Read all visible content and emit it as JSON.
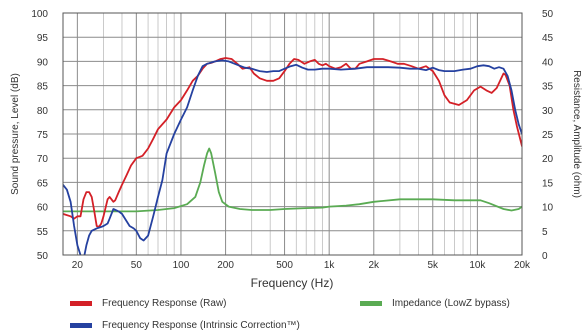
{
  "chart_data": {
    "type": "line",
    "title": "",
    "xlabel": "Frequency (Hz)",
    "ylabel_left": "Sound pressure, Level (dB)",
    "ylabel_right": "Resistance, Amplitude (ohm)",
    "x_scale": "log",
    "xlim": [
      16,
      20000
    ],
    "ylim_left": [
      50,
      100
    ],
    "ylim_right": [
      0,
      50
    ],
    "x_ticks": [
      {
        "value": 20,
        "label": "20"
      },
      {
        "value": 50,
        "label": "50"
      },
      {
        "value": 100,
        "label": "100"
      },
      {
        "value": 200,
        "label": "200"
      },
      {
        "value": 500,
        "label": "500"
      },
      {
        "value": 1000,
        "label": "1k"
      },
      {
        "value": 2000,
        "label": "2k"
      },
      {
        "value": 5000,
        "label": "5k"
      },
      {
        "value": 10000,
        "label": "10k"
      },
      {
        "value": 20000,
        "label": "20k"
      }
    ],
    "y_ticks_left": [
      "50",
      "55",
      "60",
      "65",
      "70",
      "75",
      "80",
      "85",
      "90",
      "95",
      "100"
    ],
    "y_ticks_right": [
      "0",
      "5",
      "10",
      "15",
      "20",
      "25",
      "30",
      "35",
      "40",
      "45",
      "50"
    ],
    "grid": true,
    "legend_position": "bottom",
    "series": [
      {
        "name": "Frequency Response (Raw)",
        "color": "#d42027",
        "axis": "left",
        "points": [
          [
            16,
            58.5
          ],
          [
            18,
            58
          ],
          [
            19,
            57.5
          ],
          [
            20,
            58
          ],
          [
            21,
            58
          ],
          [
            22,
            61.5
          ],
          [
            23,
            63
          ],
          [
            24,
            63
          ],
          [
            25,
            62
          ],
          [
            26,
            59
          ],
          [
            27,
            56
          ],
          [
            28,
            55.8
          ],
          [
            29,
            56.5
          ],
          [
            30,
            58
          ],
          [
            32,
            61.5
          ],
          [
            33,
            62
          ],
          [
            35,
            61
          ],
          [
            36,
            61.3
          ],
          [
            38,
            63
          ],
          [
            40,
            64.5
          ],
          [
            43,
            66.5
          ],
          [
            46,
            68.5
          ],
          [
            50,
            70
          ],
          [
            55,
            70.5
          ],
          [
            60,
            72
          ],
          [
            65,
            74
          ],
          [
            70,
            76
          ],
          [
            80,
            78
          ],
          [
            90,
            80.5
          ],
          [
            100,
            82
          ],
          [
            110,
            84
          ],
          [
            120,
            86
          ],
          [
            130,
            87
          ],
          [
            140,
            88.5
          ],
          [
            150,
            89.5
          ],
          [
            160,
            89.7
          ],
          [
            170,
            90
          ],
          [
            185,
            90.5
          ],
          [
            200,
            90.7
          ],
          [
            220,
            90.5
          ],
          [
            240,
            89.5
          ],
          [
            260,
            88.5
          ],
          [
            290,
            88.8
          ],
          [
            310,
            87.5
          ],
          [
            340,
            86.5
          ],
          [
            380,
            86
          ],
          [
            420,
            86
          ],
          [
            460,
            86.5
          ],
          [
            500,
            88
          ],
          [
            540,
            89.5
          ],
          [
            580,
            90.5
          ],
          [
            620,
            90.3
          ],
          [
            680,
            89.5
          ],
          [
            740,
            90
          ],
          [
            800,
            90.3
          ],
          [
            850,
            89.5
          ],
          [
            900,
            89.2
          ],
          [
            950,
            89.5
          ],
          [
            1000,
            89
          ],
          [
            1100,
            88.5
          ],
          [
            1200,
            88.8
          ],
          [
            1300,
            89.5
          ],
          [
            1400,
            88.5
          ],
          [
            1500,
            88.5
          ],
          [
            1600,
            89.5
          ],
          [
            1800,
            90
          ],
          [
            2000,
            90.5
          ],
          [
            2300,
            90.5
          ],
          [
            2600,
            90
          ],
          [
            2900,
            89.5
          ],
          [
            3200,
            89.5
          ],
          [
            3600,
            89
          ],
          [
            4000,
            88.5
          ],
          [
            4500,
            89
          ],
          [
            5000,
            88
          ],
          [
            5500,
            86
          ],
          [
            6000,
            83
          ],
          [
            6500,
            81.5
          ],
          [
            7500,
            81
          ],
          [
            8500,
            82
          ],
          [
            9500,
            84
          ],
          [
            10500,
            84.8
          ],
          [
            11500,
            84
          ],
          [
            12500,
            83.5
          ],
          [
            13500,
            84.5
          ],
          [
            15000,
            87.5
          ],
          [
            15500,
            87.2
          ],
          [
            16500,
            85
          ],
          [
            17500,
            80
          ],
          [
            18500,
            76.5
          ],
          [
            20000,
            72.5
          ]
        ]
      },
      {
        "name": "Frequency Response (Intrinsic Correction™)",
        "color": "#2541a0",
        "axis": "left",
        "points": [
          [
            16,
            64.5
          ],
          [
            17,
            63.5
          ],
          [
            18,
            61
          ],
          [
            19,
            56
          ],
          [
            20,
            52
          ],
          [
            21,
            50
          ],
          [
            22,
            49
          ],
          [
            23,
            52
          ],
          [
            24,
            54
          ],
          [
            25,
            55
          ],
          [
            27,
            55.5
          ],
          [
            29,
            55.8
          ],
          [
            30,
            56
          ],
          [
            32,
            56.5
          ],
          [
            33,
            57.5
          ],
          [
            35,
            59.5
          ],
          [
            38,
            59
          ],
          [
            40,
            58.5
          ],
          [
            45,
            56
          ],
          [
            48,
            55.5
          ],
          [
            50,
            55
          ],
          [
            53,
            53.5
          ],
          [
            56,
            53
          ],
          [
            60,
            54
          ],
          [
            65,
            58
          ],
          [
            70,
            62
          ],
          [
            75,
            65.5
          ],
          [
            80,
            71
          ],
          [
            90,
            75
          ],
          [
            100,
            78
          ],
          [
            110,
            80.5
          ],
          [
            120,
            84
          ],
          [
            130,
            87
          ],
          [
            140,
            89
          ],
          [
            150,
            89.5
          ],
          [
            170,
            90
          ],
          [
            190,
            90.2
          ],
          [
            210,
            90
          ],
          [
            240,
            89.3
          ],
          [
            270,
            88.7
          ],
          [
            300,
            88.5
          ],
          [
            340,
            88
          ],
          [
            380,
            87.8
          ],
          [
            420,
            88
          ],
          [
            460,
            88
          ],
          [
            500,
            88.5
          ],
          [
            550,
            89
          ],
          [
            600,
            89.3
          ],
          [
            660,
            88.7
          ],
          [
            720,
            88.3
          ],
          [
            800,
            88.3
          ],
          [
            900,
            88.5
          ],
          [
            1000,
            88.5
          ],
          [
            1200,
            88.3
          ],
          [
            1500,
            88.5
          ],
          [
            1800,
            88.8
          ],
          [
            2000,
            88.8
          ],
          [
            2500,
            88.8
          ],
          [
            3000,
            88.7
          ],
          [
            3500,
            88.5
          ],
          [
            4000,
            88.5
          ],
          [
            4500,
            88.2
          ],
          [
            5000,
            88.7
          ],
          [
            5500,
            88.2
          ],
          [
            6000,
            88
          ],
          [
            7000,
            88
          ],
          [
            8000,
            88.3
          ],
          [
            9000,
            88.5
          ],
          [
            10000,
            89
          ],
          [
            11000,
            89.2
          ],
          [
            12000,
            89
          ],
          [
            13000,
            88.5
          ],
          [
            14000,
            88.8
          ],
          [
            15000,
            88.5
          ],
          [
            16000,
            87
          ],
          [
            17000,
            84
          ],
          [
            18000,
            80
          ],
          [
            19000,
            77
          ],
          [
            20000,
            75
          ]
        ]
      },
      {
        "name": "Impedance (LowZ bypass)",
        "color": "#5aab53",
        "axis": "right",
        "points": [
          [
            16,
            9
          ],
          [
            30,
            9
          ],
          [
            50,
            9
          ],
          [
            70,
            9.3
          ],
          [
            90,
            9.7
          ],
          [
            110,
            10.5
          ],
          [
            125,
            12
          ],
          [
            135,
            15
          ],
          [
            143,
            18.5
          ],
          [
            150,
            21
          ],
          [
            155,
            22
          ],
          [
            160,
            21
          ],
          [
            170,
            17
          ],
          [
            180,
            13
          ],
          [
            190,
            11
          ],
          [
            210,
            10
          ],
          [
            250,
            9.5
          ],
          [
            300,
            9.3
          ],
          [
            400,
            9.3
          ],
          [
            500,
            9.5
          ],
          [
            700,
            9.7
          ],
          [
            900,
            9.8
          ],
          [
            1000,
            10
          ],
          [
            1300,
            10.2
          ],
          [
            1600,
            10.5
          ],
          [
            2000,
            11
          ],
          [
            3000,
            11.5
          ],
          [
            5000,
            11.5
          ],
          [
            7000,
            11.3
          ],
          [
            9000,
            11.3
          ],
          [
            10500,
            11.3
          ],
          [
            12000,
            10.7
          ],
          [
            15000,
            9.5
          ],
          [
            17000,
            9.2
          ],
          [
            19000,
            9.5
          ],
          [
            20000,
            10
          ]
        ]
      }
    ]
  }
}
